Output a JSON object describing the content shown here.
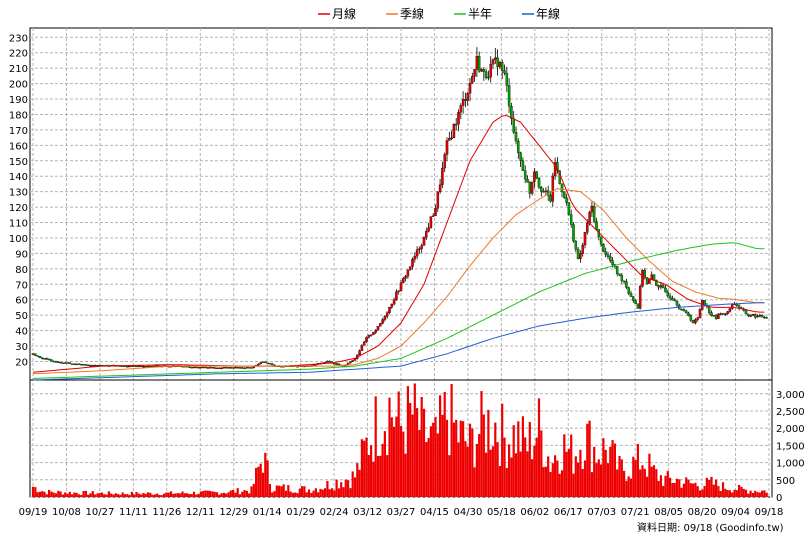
{
  "chart_data": {
    "type": "candlestick+volume",
    "legend": {
      "placement": "top-center",
      "items": [
        {
          "name": "月線",
          "color": "#e00000"
        },
        {
          "name": "季線",
          "color": "#f07828"
        },
        {
          "name": "半年",
          "color": "#20c020"
        },
        {
          "name": "年線",
          "color": "#2060d0"
        }
      ]
    },
    "colors": {
      "up": "#e00000",
      "down": "#00a000",
      "volume": "#ee0000",
      "grid": "#b4b4b4"
    },
    "price_axis": {
      "ticks": [
        20,
        30,
        40,
        50,
        60,
        70,
        80,
        90,
        100,
        110,
        120,
        130,
        140,
        150,
        160,
        170,
        180,
        190,
        200,
        210,
        220,
        230
      ],
      "ylim": [
        8,
        236
      ]
    },
    "volume_axis": {
      "ticks": [
        "0",
        "500",
        "1,000",
        "1,500",
        "2,000",
        "2,500",
        "3,000"
      ],
      "max": 3400
    },
    "date_ticks": [
      "09/19",
      "10/08",
      "10/27",
      "11/11",
      "11/26",
      "12/11",
      "12/29",
      "01/14",
      "01/29",
      "02/24",
      "03/12",
      "03/27",
      "04/15",
      "04/30",
      "05/18",
      "06/02",
      "06/17",
      "07/03",
      "07/21",
      "08/05",
      "08/20",
      "09/04",
      "09/18"
    ],
    "footer": "資料日期: 09/18  (Goodinfo.tw)",
    "close_path": [
      [
        0,
        25
      ],
      [
        4,
        22
      ],
      [
        10,
        20
      ],
      [
        20,
        18
      ],
      [
        40,
        17
      ],
      [
        60,
        17
      ],
      [
        80,
        16
      ],
      [
        95,
        16
      ],
      [
        100,
        20
      ],
      [
        105,
        17
      ],
      [
        120,
        17
      ],
      [
        128,
        20
      ],
      [
        135,
        17
      ],
      [
        140,
        22
      ],
      [
        145,
        35
      ],
      [
        150,
        42
      ],
      [
        155,
        55
      ],
      [
        160,
        70
      ],
      [
        165,
        85
      ],
      [
        170,
        100
      ],
      [
        175,
        120
      ],
      [
        180,
        160
      ],
      [
        185,
        180
      ],
      [
        190,
        200
      ],
      [
        193,
        215
      ],
      [
        196,
        205
      ],
      [
        199,
        210
      ],
      [
        202,
        215
      ],
      [
        205,
        205
      ],
      [
        208,
        180
      ],
      [
        210,
        160
      ],
      [
        212,
        150
      ],
      [
        214,
        140
      ],
      [
        216,
        130
      ],
      [
        218,
        145
      ],
      [
        220,
        135
      ],
      [
        222,
        130
      ],
      [
        225,
        125
      ],
      [
        227,
        150
      ],
      [
        229,
        135
      ],
      [
        231,
        128
      ],
      [
        233,
        115
      ],
      [
        235,
        100
      ],
      [
        237,
        85
      ],
      [
        239,
        95
      ],
      [
        241,
        110
      ],
      [
        243,
        120
      ],
      [
        245,
        105
      ],
      [
        247,
        95
      ],
      [
        249,
        90
      ],
      [
        251,
        85
      ],
      [
        253,
        80
      ],
      [
        255,
        75
      ],
      [
        257,
        72
      ],
      [
        259,
        65
      ],
      [
        261,
        60
      ],
      [
        263,
        55
      ],
      [
        265,
        80
      ],
      [
        267,
        70
      ],
      [
        269,
        75
      ],
      [
        271,
        70
      ],
      [
        273,
        68
      ],
      [
        275,
        65
      ],
      [
        277,
        62
      ],
      [
        279,
        60
      ],
      [
        281,
        55
      ],
      [
        283,
        52
      ],
      [
        285,
        50
      ],
      [
        287,
        45
      ],
      [
        289,
        48
      ],
      [
        291,
        60
      ],
      [
        293,
        55
      ],
      [
        295,
        50
      ],
      [
        297,
        48
      ],
      [
        299,
        52
      ],
      [
        301,
        50
      ],
      [
        303,
        55
      ],
      [
        305,
        58
      ],
      [
        307,
        55
      ],
      [
        309,
        52
      ],
      [
        311,
        50
      ],
      [
        313,
        50
      ],
      [
        315,
        49
      ]
    ],
    "ma_lines": {
      "月線": [
        [
          0,
          13
        ],
        [
          30,
          17
        ],
        [
          60,
          18
        ],
        [
          90,
          17
        ],
        [
          110,
          17
        ],
        [
          130,
          19
        ],
        [
          140,
          22
        ],
        [
          150,
          30
        ],
        [
          160,
          45
        ],
        [
          170,
          70
        ],
        [
          180,
          110
        ],
        [
          190,
          150
        ],
        [
          200,
          175
        ],
        [
          205,
          180
        ],
        [
          212,
          175
        ],
        [
          220,
          160
        ],
        [
          228,
          145
        ],
        [
          235,
          120
        ],
        [
          245,
          105
        ],
        [
          255,
          90
        ],
        [
          265,
          75
        ],
        [
          275,
          70
        ],
        [
          285,
          60
        ],
        [
          295,
          55
        ],
        [
          305,
          55
        ],
        [
          315,
          52
        ]
      ],
      "季線": [
        [
          0,
          12
        ],
        [
          30,
          14
        ],
        [
          60,
          17
        ],
        [
          90,
          17
        ],
        [
          110,
          17
        ],
        [
          130,
          17
        ],
        [
          140,
          18
        ],
        [
          150,
          22
        ],
        [
          160,
          30
        ],
        [
          170,
          45
        ],
        [
          180,
          62
        ],
        [
          190,
          82
        ],
        [
          200,
          100
        ],
        [
          210,
          115
        ],
        [
          220,
          125
        ],
        [
          228,
          132
        ],
        [
          238,
          130
        ],
        [
          248,
          118
        ],
        [
          258,
          100
        ],
        [
          268,
          85
        ],
        [
          278,
          72
        ],
        [
          288,
          65
        ],
        [
          298,
          61
        ],
        [
          306,
          60
        ],
        [
          315,
          58
        ]
      ],
      "半年": [
        [
          0,
          9
        ],
        [
          40,
          11
        ],
        [
          80,
          13
        ],
        [
          120,
          15
        ],
        [
          140,
          17
        ],
        [
          160,
          22
        ],
        [
          180,
          35
        ],
        [
          200,
          50
        ],
        [
          220,
          65
        ],
        [
          240,
          77
        ],
        [
          260,
          85
        ],
        [
          280,
          92
        ],
        [
          295,
          96
        ],
        [
          305,
          97
        ],
        [
          315,
          93
        ]
      ],
      "年線": [
        [
          0,
          8
        ],
        [
          40,
          10
        ],
        [
          80,
          12
        ],
        [
          120,
          13
        ],
        [
          140,
          15
        ],
        [
          160,
          17
        ],
        [
          180,
          25
        ],
        [
          200,
          35
        ],
        [
          220,
          43
        ],
        [
          240,
          48
        ],
        [
          260,
          52
        ],
        [
          280,
          55
        ],
        [
          300,
          57
        ],
        [
          315,
          58
        ]
      ]
    },
    "volume_profile": [
      [
        0,
        300
      ],
      [
        5,
        150
      ],
      [
        20,
        120
      ],
      [
        40,
        100
      ],
      [
        60,
        110
      ],
      [
        80,
        130
      ],
      [
        95,
        200
      ],
      [
        100,
        1200
      ],
      [
        104,
        280
      ],
      [
        120,
        220
      ],
      [
        125,
        280
      ],
      [
        130,
        400
      ],
      [
        140,
        600
      ],
      [
        145,
        1500
      ],
      [
        150,
        2200
      ],
      [
        155,
        2600
      ],
      [
        160,
        2000
      ],
      [
        165,
        2400
      ],
      [
        170,
        1800
      ],
      [
        175,
        1600
      ],
      [
        180,
        2400
      ],
      [
        185,
        1800
      ],
      [
        190,
        1500
      ],
      [
        195,
        2000
      ],
      [
        200,
        2200
      ],
      [
        205,
        1700
      ],
      [
        210,
        1800
      ],
      [
        215,
        1500
      ],
      [
        220,
        2000
      ],
      [
        225,
        1000
      ],
      [
        230,
        1500
      ],
      [
        235,
        1200
      ],
      [
        240,
        1800
      ],
      [
        245,
        1300
      ],
      [
        250,
        1400
      ],
      [
        255,
        800
      ],
      [
        260,
        900
      ],
      [
        265,
        1100
      ],
      [
        270,
        700
      ],
      [
        275,
        500
      ],
      [
        280,
        500
      ],
      [
        285,
        400
      ],
      [
        290,
        350
      ],
      [
        295,
        400
      ],
      [
        300,
        300
      ],
      [
        305,
        250
      ],
      [
        310,
        200
      ],
      [
        315,
        180
      ]
    ]
  }
}
